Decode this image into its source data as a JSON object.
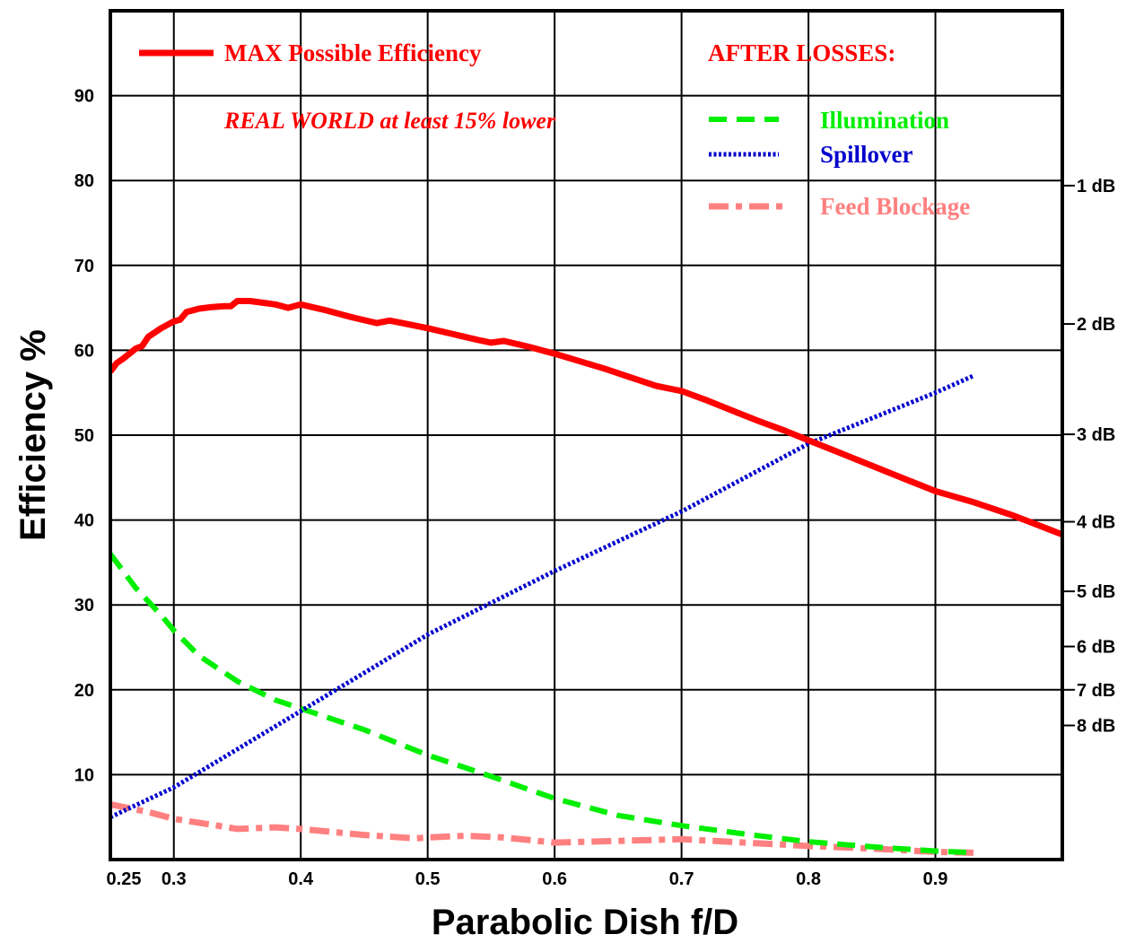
{
  "chart_data": {
    "type": "line",
    "xlabel": "Parabolic Dish f/D",
    "ylabel": "Efficiency %",
    "xlim": [
      0.25,
      1.0
    ],
    "ylim": [
      0,
      100
    ],
    "grid": true,
    "x_ticks": [
      {
        "value": 0.25,
        "label": "0.25"
      },
      {
        "value": 0.3,
        "label": "0.3"
      },
      {
        "value": 0.4,
        "label": "0.4"
      },
      {
        "value": 0.5,
        "label": "0.5"
      },
      {
        "value": 0.6,
        "label": "0.6"
      },
      {
        "value": 0.7,
        "label": "0.7"
      },
      {
        "value": 0.8,
        "label": "0.8"
      },
      {
        "value": 0.9,
        "label": "0.9"
      }
    ],
    "y_ticks": [
      {
        "value": 10,
        "label": "10"
      },
      {
        "value": 20,
        "label": "20"
      },
      {
        "value": 30,
        "label": "30"
      },
      {
        "value": 40,
        "label": "40"
      },
      {
        "value": 50,
        "label": "50"
      },
      {
        "value": 60,
        "label": "60"
      },
      {
        "value": 70,
        "label": "70"
      },
      {
        "value": 80,
        "label": "80"
      },
      {
        "value": 90,
        "label": "90"
      }
    ],
    "right_axis_ticks": [
      {
        "value": 79.4,
        "label": "1 dB"
      },
      {
        "value": 63.1,
        "label": "2 dB"
      },
      {
        "value": 50.1,
        "label": "3 dB"
      },
      {
        "value": 39.8,
        "label": "4 dB"
      },
      {
        "value": 31.6,
        "label": "5 dB"
      },
      {
        "value": 25.1,
        "label": "6 dB"
      },
      {
        "value": 20.0,
        "label": "7 dB"
      },
      {
        "value": 15.8,
        "label": "8 dB"
      }
    ],
    "legend_header": "AFTER LOSSES:",
    "annotation": "REAL WORLD at least 15% lower",
    "series": [
      {
        "name": "MAX Possible Efficiency",
        "color": "#ff0000",
        "style": "solid",
        "x": [
          0.25,
          0.255,
          0.26,
          0.27,
          0.275,
          0.28,
          0.29,
          0.3,
          0.305,
          0.31,
          0.32,
          0.33,
          0.34,
          0.345,
          0.35,
          0.36,
          0.37,
          0.38,
          0.39,
          0.4,
          0.42,
          0.44,
          0.46,
          0.47,
          0.48,
          0.5,
          0.52,
          0.54,
          0.55,
          0.56,
          0.58,
          0.6,
          0.62,
          0.64,
          0.66,
          0.68,
          0.69,
          0.7,
          0.72,
          0.74,
          0.76,
          0.78,
          0.8,
          0.82,
          0.84,
          0.86,
          0.88,
          0.9,
          0.93,
          0.96,
          1.0
        ],
        "y": [
          57.5,
          58.5,
          59.0,
          60.2,
          60.5,
          61.6,
          62.6,
          63.4,
          63.6,
          64.5,
          64.9,
          65.1,
          65.2,
          65.2,
          65.8,
          65.8,
          65.6,
          65.4,
          65.0,
          65.4,
          64.7,
          63.9,
          63.2,
          63.5,
          63.2,
          62.6,
          61.9,
          61.2,
          60.9,
          61.1,
          60.4,
          59.6,
          58.7,
          57.8,
          56.8,
          55.8,
          55.5,
          55.2,
          54.1,
          52.9,
          51.7,
          50.6,
          49.4,
          48.2,
          47.0,
          45.8,
          44.6,
          43.4,
          42.1,
          40.6,
          38.3
        ]
      },
      {
        "name": "Illumination",
        "color": "#00ee00",
        "style": "dashed",
        "x": [
          0.25,
          0.27,
          0.29,
          0.3,
          0.32,
          0.35,
          0.38,
          0.4,
          0.45,
          0.5,
          0.55,
          0.6,
          0.65,
          0.7,
          0.75,
          0.8,
          0.85,
          0.9,
          0.93
        ],
        "y": [
          36.0,
          32.0,
          28.8,
          27.0,
          24.0,
          21.0,
          18.8,
          17.8,
          15.3,
          12.3,
          9.8,
          7.2,
          5.2,
          4.0,
          3.0,
          2.1,
          1.5,
          1.0,
          0.8
        ]
      },
      {
        "name": "Spillover",
        "color": "#0000cc",
        "style": "dotted",
        "x": [
          0.25,
          0.3,
          0.4,
          0.5,
          0.6,
          0.7,
          0.8,
          0.9,
          0.93
        ],
        "y": [
          5.0,
          8.5,
          17.5,
          26.5,
          34.0,
          41.0,
          49.0,
          55.0,
          57.0
        ]
      },
      {
        "name": "Feed Blockage",
        "color": "#ff8080",
        "style": "dashdot",
        "x": [
          0.25,
          0.28,
          0.3,
          0.33,
          0.35,
          0.38,
          0.4,
          0.45,
          0.49,
          0.5,
          0.53,
          0.56,
          0.6,
          0.65,
          0.7,
          0.75,
          0.8,
          0.85,
          0.9,
          0.93
        ],
        "y": [
          6.5,
          5.6,
          4.8,
          4.1,
          3.6,
          3.8,
          3.6,
          2.9,
          2.5,
          2.6,
          2.8,
          2.6,
          2.0,
          2.2,
          2.4,
          2.0,
          1.6,
          1.3,
          0.9,
          0.8
        ]
      }
    ]
  }
}
